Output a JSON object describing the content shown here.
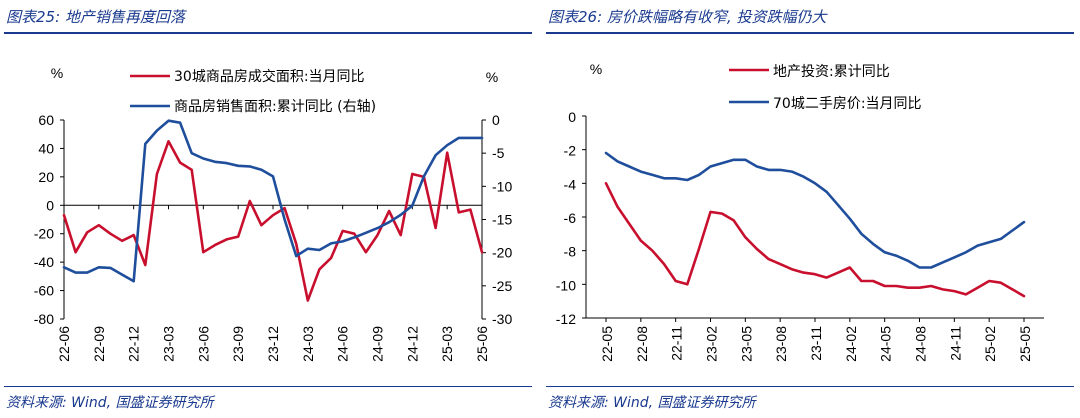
{
  "left": {
    "title": "图表25:  地产销售再度回落",
    "source": "资料来源: Wind, 国盛证券研究所",
    "colors": {
      "accent": "#1a3a8f"
    },
    "chart_data": {
      "type": "line",
      "title": "",
      "yunit_left": "%",
      "yunit_right": "%",
      "y_left_range": [
        -80,
        60
      ],
      "y_left_ticks": [
        "60",
        "40",
        "20",
        "0",
        "-20",
        "-40",
        "-60",
        "-80"
      ],
      "y_right_range": [
        -30,
        0
      ],
      "y_right_ticks": [
        "0",
        "-5",
        "-10",
        "-15",
        "-20",
        "-25",
        "-30"
      ],
      "x_ticks": [
        "22-06",
        "22-09",
        "22-12",
        "23-03",
        "23-06",
        "23-09",
        "23-12",
        "24-03",
        "24-06",
        "24-09",
        "24-12",
        "25-03",
        "25-06"
      ],
      "grid": false,
      "legend_position": "top-center",
      "series": [
        {
          "name": "30城商品房成交面积:当月同比",
          "axis": "left",
          "color": "#c8102e",
          "x": [
            "22-06",
            "22-07",
            "22-08",
            "22-09",
            "22-10",
            "22-11",
            "22-12",
            "23-01",
            "23-02",
            "23-03",
            "23-04",
            "23-05",
            "23-06",
            "23-07",
            "23-08",
            "23-09",
            "23-10",
            "23-11",
            "23-12",
            "24-01",
            "24-02",
            "24-03",
            "24-04",
            "24-05",
            "24-06",
            "24-07",
            "24-08",
            "24-09",
            "24-10",
            "24-11",
            "24-12",
            "25-01",
            "25-02",
            "25-03",
            "25-04",
            "25-05",
            "25-06"
          ],
          "values": [
            -7,
            -33,
            -19,
            -14,
            -20,
            -25,
            -21,
            -42,
            22,
            45,
            30,
            25,
            -33,
            -28,
            -24,
            -22,
            3,
            -14,
            -7,
            -2,
            -27,
            -67,
            -45,
            -37,
            -18,
            -20,
            -33,
            -21,
            -4,
            -21,
            22,
            20,
            -16,
            37,
            -5,
            -3,
            -33
          ]
        },
        {
          "name": "商品房销售面积:累计同比 (右轴)",
          "axis": "right",
          "color": "#1f4e9c",
          "x": [
            "22-06",
            "22-07",
            "22-08",
            "22-09",
            "22-10",
            "22-11",
            "22-12",
            "23-01",
            "23-02",
            "23-03",
            "23-04",
            "23-05",
            "23-06",
            "23-07",
            "23-08",
            "23-09",
            "23-10",
            "23-11",
            "23-12",
            "24-01",
            "24-02",
            "24-03",
            "24-04",
            "24-05",
            "24-06",
            "24-07",
            "24-08",
            "24-09",
            "24-10",
            "24-11",
            "24-12",
            "25-01",
            "25-02",
            "25-03",
            "25-04",
            "25-05",
            "25-06"
          ],
          "values": [
            -22.2,
            -23.0,
            -23.0,
            -22.2,
            -22.3,
            -23.3,
            -24.3,
            -3.6,
            -1.6,
            -0.1,
            -0.4,
            -5.0,
            -5.8,
            -6.3,
            -6.5,
            -6.9,
            -7.0,
            -7.5,
            -8.5,
            -15,
            -20.5,
            -19.4,
            -19.6,
            -18.6,
            -18.3,
            -17.7,
            -17.0,
            -16.3,
            -15.4,
            -14.3,
            -12.9,
            -8.5,
            -5.3,
            -3.8,
            -2.7,
            -2.7,
            -2.7
          ]
        }
      ]
    }
  },
  "right": {
    "title": "图表26:  房价跌幅略有收窄, 投资跌幅仍大",
    "source": "资料来源: Wind, 国盛证券研究所",
    "colors": {
      "accent": "#1a3a8f"
    },
    "chart_data": {
      "type": "line",
      "title": "",
      "yunit": "%",
      "ylim": [
        -12,
        0
      ],
      "y_ticks": [
        "0",
        "-2",
        "-4",
        "-6",
        "-8",
        "-10",
        "-12"
      ],
      "x_ticks": [
        "22-05",
        "22-08",
        "22-11",
        "23-02",
        "23-05",
        "23-08",
        "23-11",
        "24-02",
        "24-05",
        "24-08",
        "24-11",
        "25-02",
        "25-05"
      ],
      "grid": false,
      "legend_position": "top-center",
      "series": [
        {
          "name": "地产投资:累计同比",
          "color": "#c8102e",
          "x": [
            "22-05",
            "22-06",
            "22-07",
            "22-08",
            "22-09",
            "22-10",
            "22-11",
            "22-12",
            "23-01",
            "23-02",
            "23-03",
            "23-04",
            "23-05",
            "23-06",
            "23-07",
            "23-08",
            "23-09",
            "23-10",
            "23-11",
            "23-12",
            "24-01",
            "24-02",
            "24-03",
            "24-04",
            "24-05",
            "24-06",
            "24-07",
            "24-08",
            "24-09",
            "24-10",
            "24-11",
            "24-12",
            "25-01",
            "25-02",
            "25-03",
            "25-04",
            "25-05"
          ],
          "values": [
            -4.0,
            -5.4,
            -6.4,
            -7.4,
            -8.0,
            -8.8,
            -9.8,
            -10.0,
            -7.9,
            -5.7,
            -5.8,
            -6.2,
            -7.2,
            -7.9,
            -8.5,
            -8.8,
            -9.1,
            -9.3,
            -9.4,
            -9.6,
            -9.3,
            -9.0,
            -9.8,
            -9.8,
            -10.1,
            -10.1,
            -10.2,
            -10.2,
            -10.1,
            -10.3,
            -10.4,
            -10.6,
            -10.2,
            -9.8,
            -9.9,
            -10.3,
            -10.7
          ]
        },
        {
          "name": "70城二手房价:当月同比",
          "color": "#1f4e9c",
          "x": [
            "22-05",
            "22-06",
            "22-07",
            "22-08",
            "22-09",
            "22-10",
            "22-11",
            "22-12",
            "23-01",
            "23-02",
            "23-03",
            "23-04",
            "23-05",
            "23-06",
            "23-07",
            "23-08",
            "23-09",
            "23-10",
            "23-11",
            "23-12",
            "24-01",
            "24-02",
            "24-03",
            "24-04",
            "24-05",
            "24-06",
            "24-07",
            "24-08",
            "24-09",
            "24-10",
            "24-11",
            "24-12",
            "25-01",
            "25-02",
            "25-03",
            "25-04",
            "25-05"
          ],
          "values": [
            -2.2,
            -2.7,
            -3.0,
            -3.3,
            -3.5,
            -3.7,
            -3.7,
            -3.8,
            -3.5,
            -3.0,
            -2.8,
            -2.6,
            -2.6,
            -3.0,
            -3.2,
            -3.2,
            -3.3,
            -3.6,
            -4.0,
            -4.5,
            -5.3,
            -6.1,
            -7.0,
            -7.6,
            -8.1,
            -8.3,
            -8.6,
            -9.0,
            -9.0,
            -8.7,
            -8.4,
            -8.1,
            -7.7,
            -7.5,
            -7.3,
            -6.8,
            -6.3
          ]
        }
      ]
    }
  }
}
